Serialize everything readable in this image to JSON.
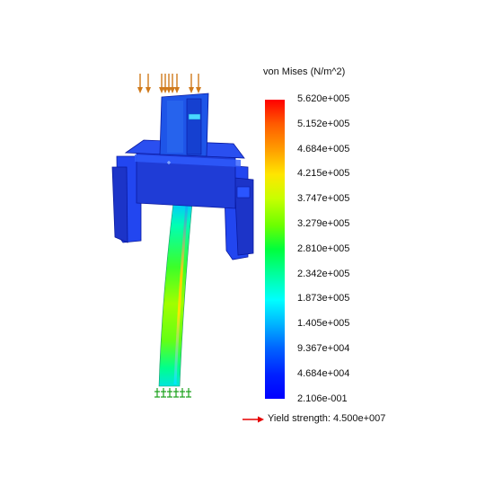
{
  "legend": {
    "title": "von Mises (N/m^2)",
    "ticks": [
      "5.620e+005",
      "5.152e+005",
      "4.684e+005",
      "4.215e+005",
      "3.747e+005",
      "3.279e+005",
      "2.810e+005",
      "2.342e+005",
      "1.873e+005",
      "1.405e+005",
      "9.367e+004",
      "4.684e+004",
      "2.106e-001"
    ],
    "yield_strength": "Yield strength: 4.500e+007",
    "colormap": [
      "#ff0000",
      "#ffa000",
      "#ffe600",
      "#6cff00",
      "#00ff3c",
      "#00ffff",
      "#0064ff",
      "#0000ff"
    ]
  },
  "colors": {
    "load_arrow": "#d07a1c",
    "fixture": "#19a019",
    "yield_arrow": "#e60000",
    "body_blue": "#1f3cd6"
  },
  "icons": {
    "load": "load-arrow-icon",
    "fixture": "fixture-icon",
    "yield": "yield-arrow-icon"
  }
}
